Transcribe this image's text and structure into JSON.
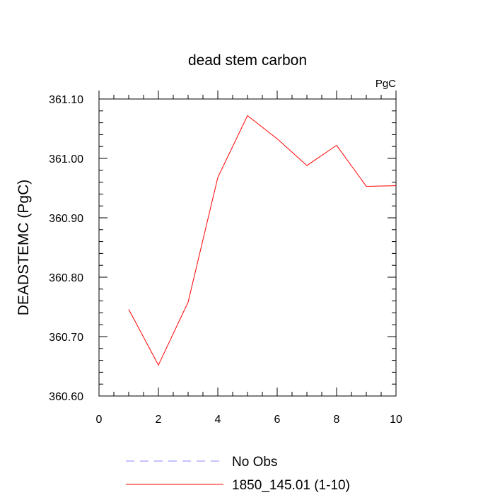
{
  "chart_data": {
    "type": "line",
    "title": "dead stem carbon",
    "units_label": "PgC",
    "xlabel": "",
    "ylabel": "DEADSTEMC  (PgC)",
    "xlim": [
      0,
      10
    ],
    "ylim": [
      360.6,
      361.1
    ],
    "x_ticks": [
      "0",
      "2",
      "4",
      "6",
      "8",
      "10"
    ],
    "y_ticks": [
      "361.10",
      "361.00",
      "360.90",
      "360.80",
      "360.70",
      "360.60"
    ],
    "grid": false,
    "legend_position": "bottom",
    "series": [
      {
        "name": "1850_145.01 (1-10)",
        "color": "#ff0000",
        "style": "solid",
        "x": [
          1,
          2,
          3,
          4,
          5,
          6,
          7,
          8,
          9,
          10
        ],
        "y": [
          360.746,
          360.652,
          360.758,
          360.968,
          361.072,
          361.033,
          360.988,
          361.022,
          360.953,
          360.954
        ]
      }
    ],
    "legend": [
      {
        "label": "No Obs",
        "color": "#8888ff",
        "style": "dashed"
      },
      {
        "label": "1850_145.01 (1-10)",
        "color": "#ff0000",
        "style": "solid"
      }
    ]
  }
}
